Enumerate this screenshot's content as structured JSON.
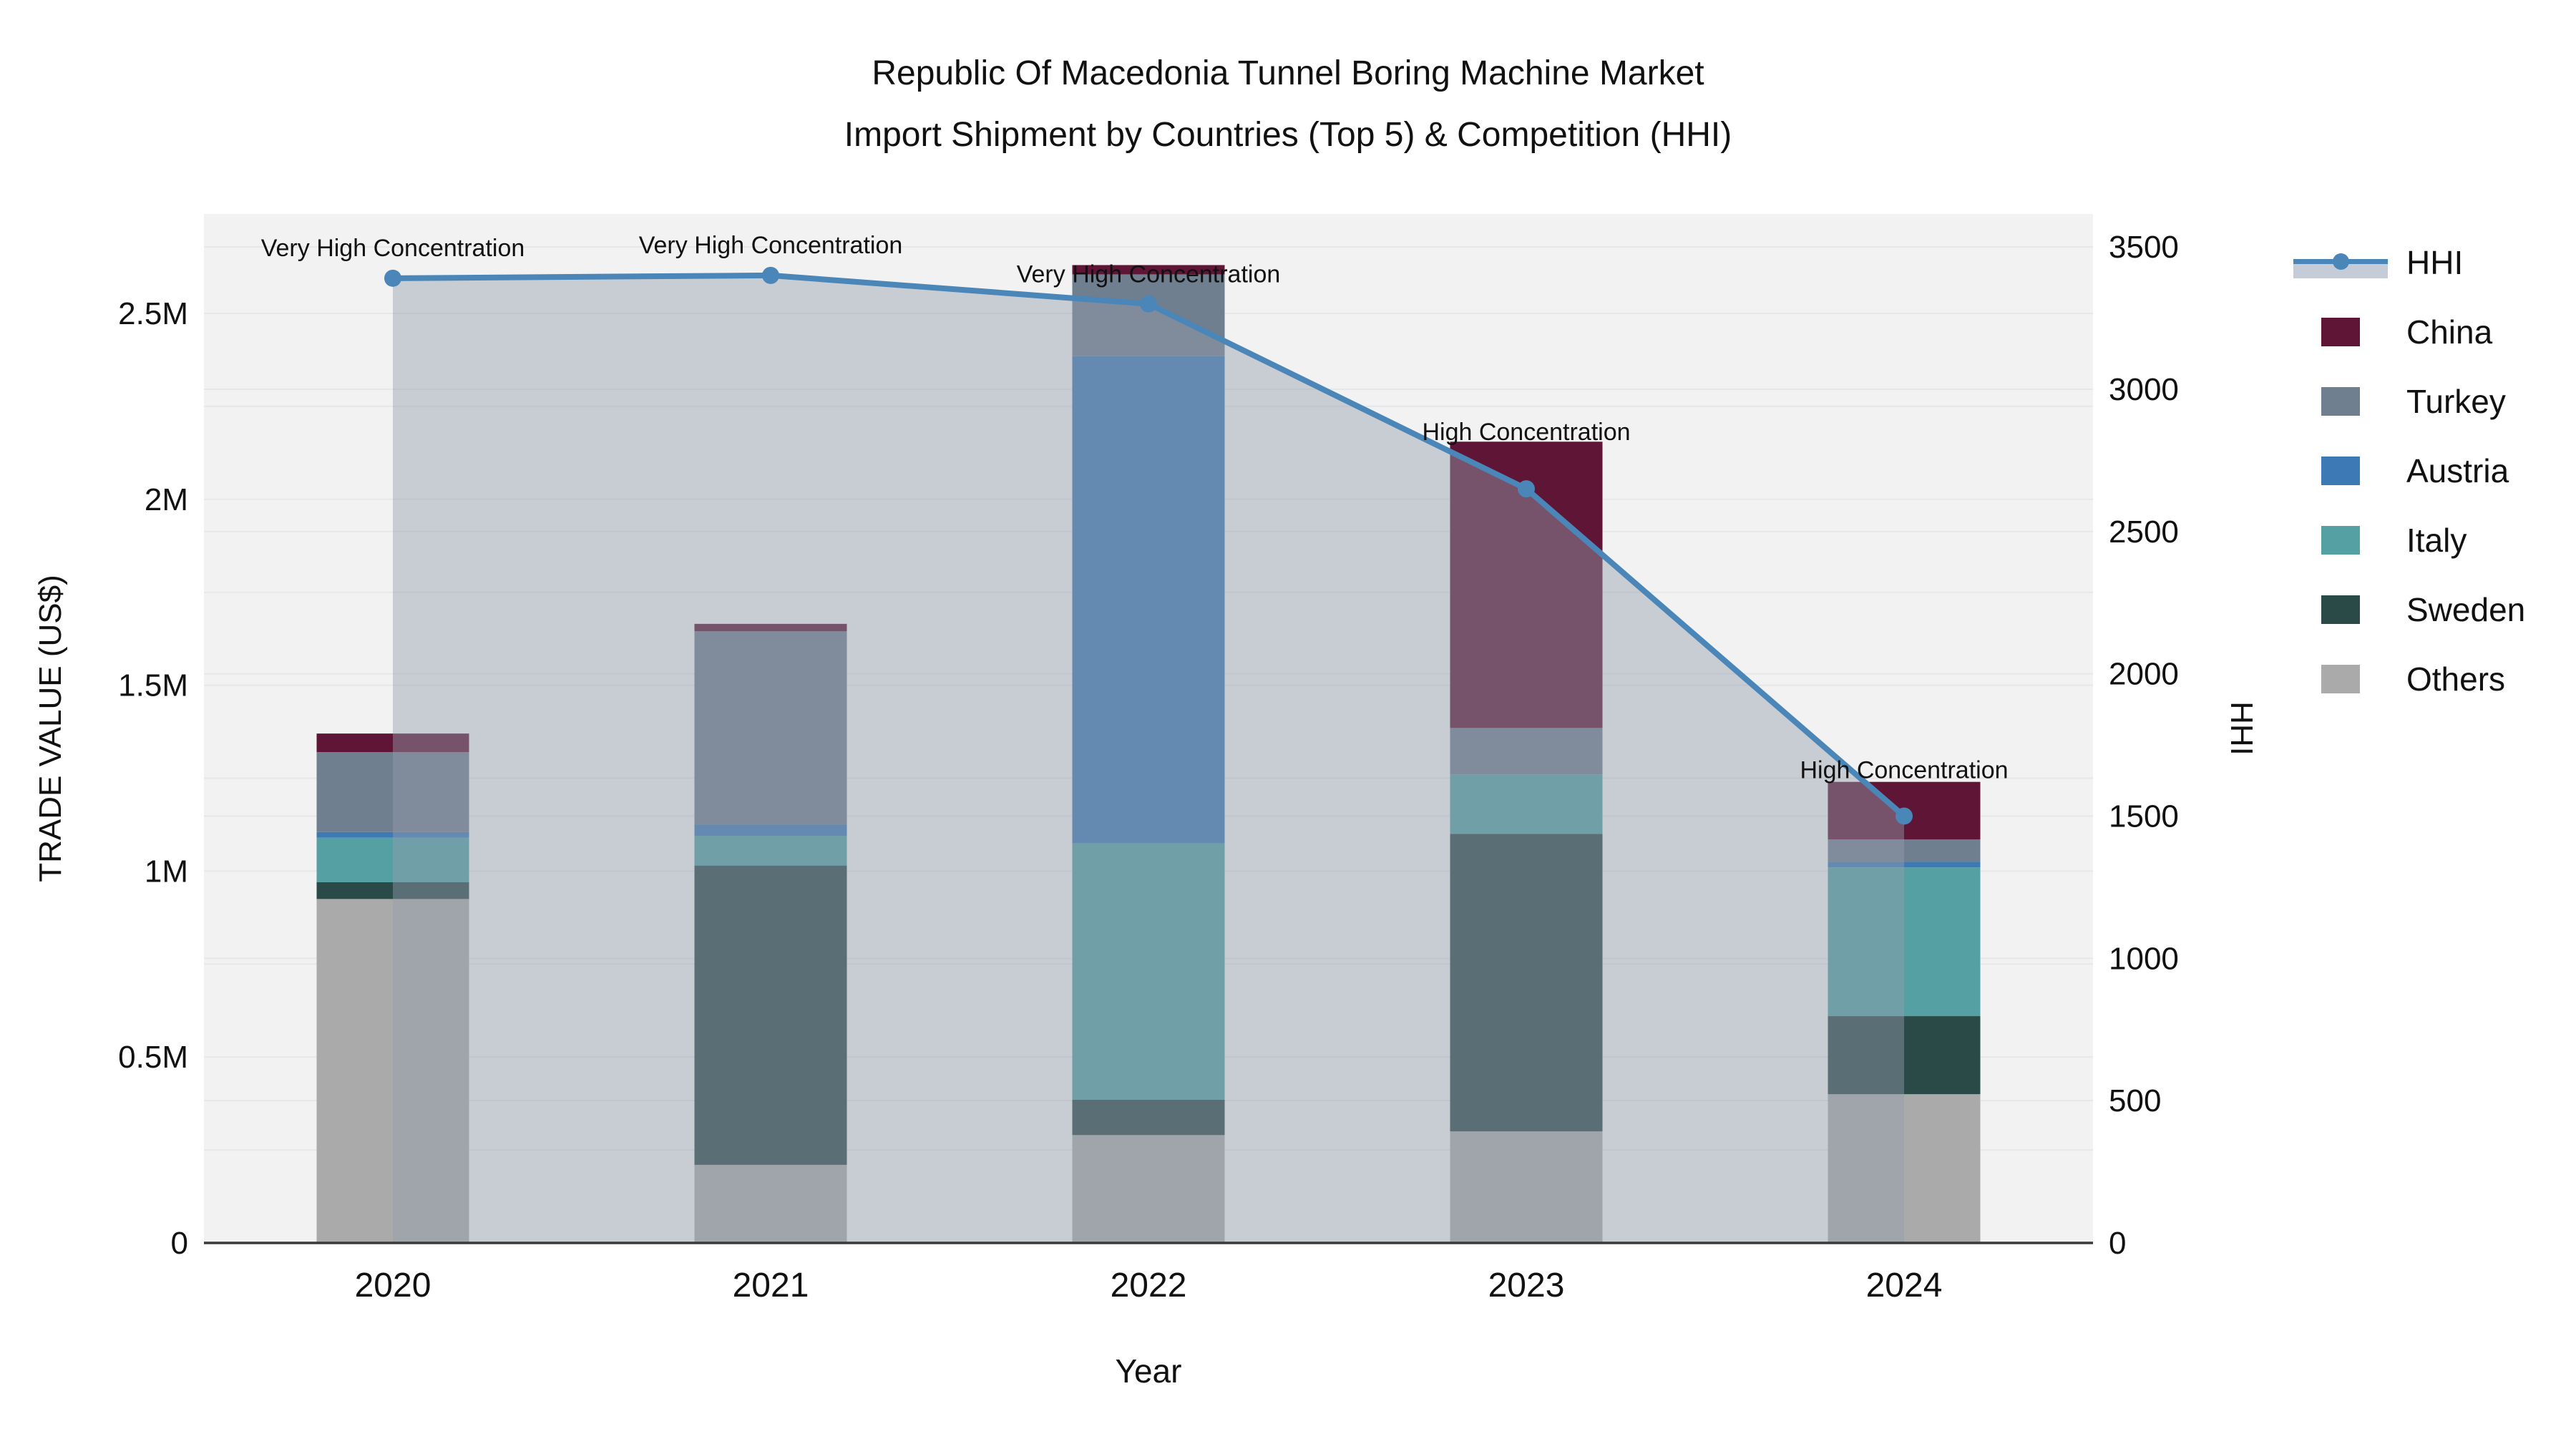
{
  "title": {
    "line1": "Republic Of Macedonia Tunnel Boring Machine Market",
    "line2": "Import Shipment by Countries (Top 5) & Competition (HHI)"
  },
  "chart_data": {
    "type": "combo-stacked-bar-line",
    "categories": [
      "2020",
      "2021",
      "2022",
      "2023",
      "2024"
    ],
    "bar_series": [
      {
        "name": "China",
        "color": "#5f1535",
        "values": [
          50000,
          20000,
          25000,
          770000,
          155000
        ]
      },
      {
        "name": "Turkey",
        "color": "#6f7f8f",
        "values": [
          215000,
          520000,
          220000,
          125000,
          60000
        ]
      },
      {
        "name": "Austria",
        "color": "#3d7ab5",
        "values": [
          15000,
          30000,
          1310000,
          0,
          15000
        ]
      },
      {
        "name": "Italy",
        "color": "#55a0a2",
        "values": [
          120000,
          80000,
          690000,
          160000,
          400000
        ]
      },
      {
        "name": "Sweden",
        "color": "#2a4a48",
        "values": [
          45000,
          805000,
          95000,
          800000,
          210000
        ]
      },
      {
        "name": "Others",
        "color": "#a9aaa9",
        "values": [
          925000,
          210000,
          290000,
          300000,
          400000
        ]
      }
    ],
    "stack_order_bottom_to_top": [
      "Others",
      "Sweden",
      "Italy",
      "Austria",
      "Turkey",
      "China"
    ],
    "line_series": {
      "name": "HHI",
      "color": "#4a86b8",
      "fill_color": "rgba(149,158,174,0.45)",
      "values": [
        3390,
        3400,
        3300,
        2650,
        1500
      ]
    },
    "annotations": [
      {
        "year": "2020",
        "label": "Very High Concentration"
      },
      {
        "year": "2021",
        "label": "Very High Concentration"
      },
      {
        "year": "2022",
        "label": "Very High Concentration"
      },
      {
        "year": "2023",
        "label": "High Concentration"
      },
      {
        "year": "2024",
        "label": "High Concentration"
      }
    ],
    "y_left": {
      "title": "TRADE VALUE (US$)",
      "tick_labels": [
        "0",
        "0.5M",
        "1M",
        "1.5M",
        "2M",
        "2.5M"
      ],
      "tick_values": [
        0,
        500000,
        1000000,
        1500000,
        2000000,
        2500000
      ],
      "grid_step": 250000,
      "range": [
        0,
        2770000
      ]
    },
    "y_right": {
      "title": "HHI",
      "tick_labels": [
        "0",
        "500",
        "1000",
        "1500",
        "2000",
        "2500",
        "3000",
        "3500"
      ],
      "tick_values": [
        0,
        500,
        1000,
        1500,
        2000,
        2500,
        3000,
        3500
      ],
      "grid_step": 500,
      "range": [
        0,
        3617
      ]
    },
    "x_axis": {
      "title": "Year"
    },
    "legend_order": [
      "HHI",
      "China",
      "Turkey",
      "Austria",
      "Italy",
      "Sweden",
      "Others"
    ],
    "plot_bg": "#f2f2f3",
    "grid_color": "#e5e7e9",
    "axis_line_color": "#3a3a3a",
    "text_color": "#111111"
  }
}
